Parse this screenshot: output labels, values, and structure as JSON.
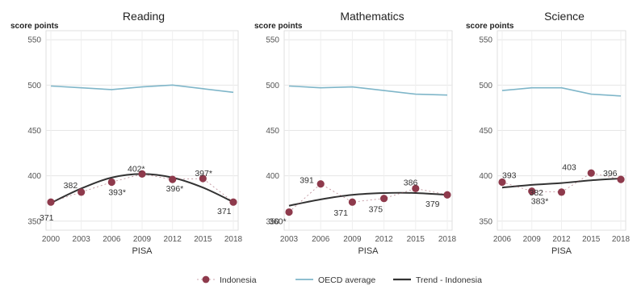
{
  "chart_data": [
    {
      "type": "line",
      "title": "Reading",
      "ylabel": "score points",
      "xlabel": "PISA",
      "ylim": [
        340,
        560
      ],
      "yticks": [
        350,
        400,
        450,
        500,
        550
      ],
      "x": [
        2000,
        2003,
        2006,
        2009,
        2012,
        2015,
        2018
      ],
      "grid": true,
      "series": [
        {
          "name": "Indonesia",
          "kind": "points",
          "values": [
            371,
            382,
            393,
            402,
            396,
            397,
            371
          ],
          "labels": [
            "371",
            "382",
            "393*",
            "402*",
            "396*",
            "397*",
            "371"
          ],
          "color": "#8e3a4c"
        },
        {
          "name": "OECD average",
          "kind": "line",
          "values": [
            499,
            497,
            495,
            498,
            500,
            496,
            492
          ],
          "color": "#7fb6c9"
        },
        {
          "name": "Trend - Indonesia",
          "kind": "trend",
          "values": [
            370,
            386,
            398,
            402,
            398,
            387,
            371
          ],
          "color": "#333333"
        }
      ]
    },
    {
      "type": "line",
      "title": "Mathematics",
      "ylabel": "score points",
      "xlabel": "PISA",
      "ylim": [
        340,
        560
      ],
      "yticks": [
        350,
        400,
        450,
        500,
        550
      ],
      "x": [
        2003,
        2006,
        2009,
        2012,
        2015,
        2018
      ],
      "grid": true,
      "series": [
        {
          "name": "Indonesia",
          "kind": "points",
          "values": [
            360,
            391,
            371,
            375,
            386,
            379
          ],
          "labels": [
            "360*",
            "391",
            "371",
            "375",
            "386",
            "379"
          ],
          "color": "#8e3a4c"
        },
        {
          "name": "OECD average",
          "kind": "line",
          "values": [
            499,
            497,
            498,
            494,
            490,
            489
          ],
          "color": "#7fb6c9"
        },
        {
          "name": "Trend - Indonesia",
          "kind": "trend",
          "values": [
            367,
            374,
            379,
            381,
            381,
            379
          ],
          "color": "#333333"
        }
      ]
    },
    {
      "type": "line",
      "title": "Science",
      "ylabel": "score points",
      "xlabel": "PISA",
      "ylim": [
        340,
        560
      ],
      "yticks": [
        350,
        400,
        450,
        500,
        550
      ],
      "x": [
        2006,
        2009,
        2012,
        2015,
        2018
      ],
      "grid": true,
      "series": [
        {
          "name": "Indonesia",
          "kind": "points",
          "values": [
            393,
            383,
            382,
            403,
            396
          ],
          "labels": [
            "393",
            "383*",
            "382",
            "403",
            "396"
          ],
          "color": "#8e3a4c"
        },
        {
          "name": "OECD average",
          "kind": "line",
          "values": [
            494,
            497,
            497,
            490,
            488
          ],
          "color": "#7fb6c9"
        },
        {
          "name": "Trend - Indonesia",
          "kind": "trend",
          "values": [
            387,
            390,
            392,
            395,
            397
          ],
          "color": "#333333"
        }
      ]
    }
  ],
  "legend": {
    "position": "bottom",
    "items": [
      {
        "label": "Indonesia",
        "kind": "point",
        "color": "#8e3a4c"
      },
      {
        "label": "OECD average",
        "kind": "line",
        "color": "#7fb6c9"
      },
      {
        "label": "Trend - Indonesia",
        "kind": "trend",
        "color": "#333333"
      }
    ]
  }
}
